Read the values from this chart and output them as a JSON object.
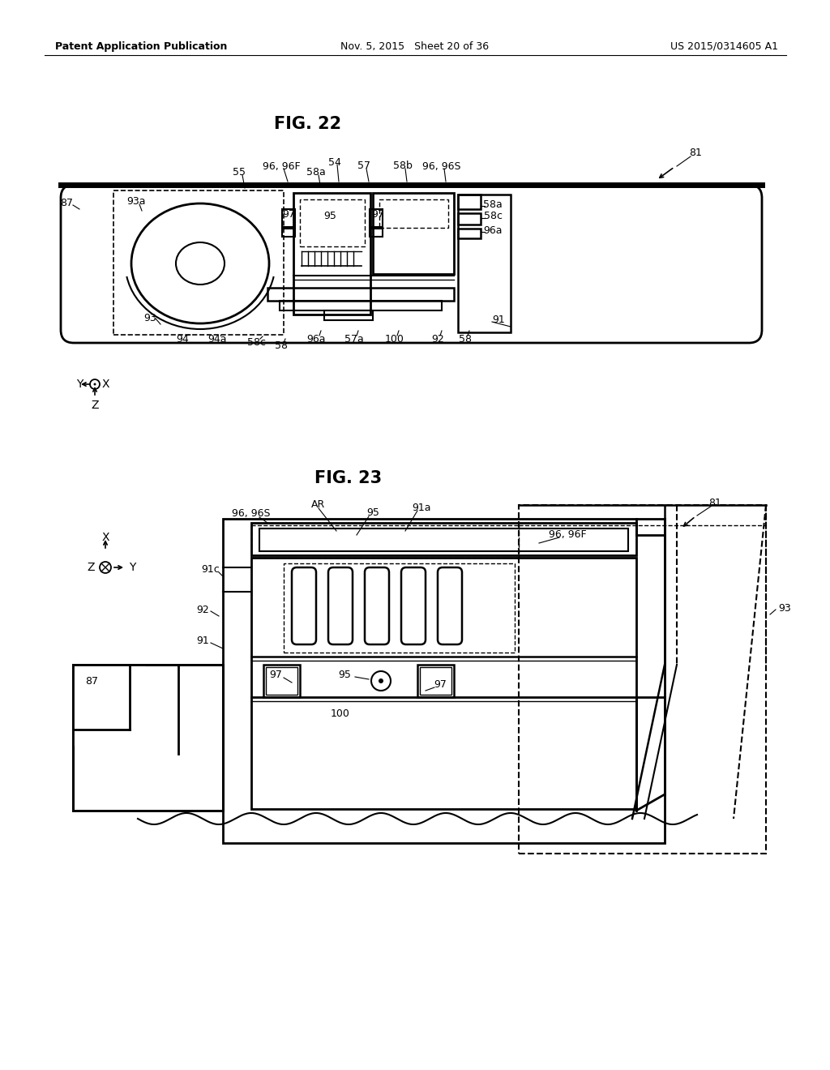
{
  "bg_color": "#ffffff",
  "header_left": "Patent Application Publication",
  "header_mid": "Nov. 5, 2015   Sheet 20 of 36",
  "header_right": "US 2015/0314605 A1",
  "fig22_title": "FIG. 22",
  "fig23_title": "FIG. 23"
}
